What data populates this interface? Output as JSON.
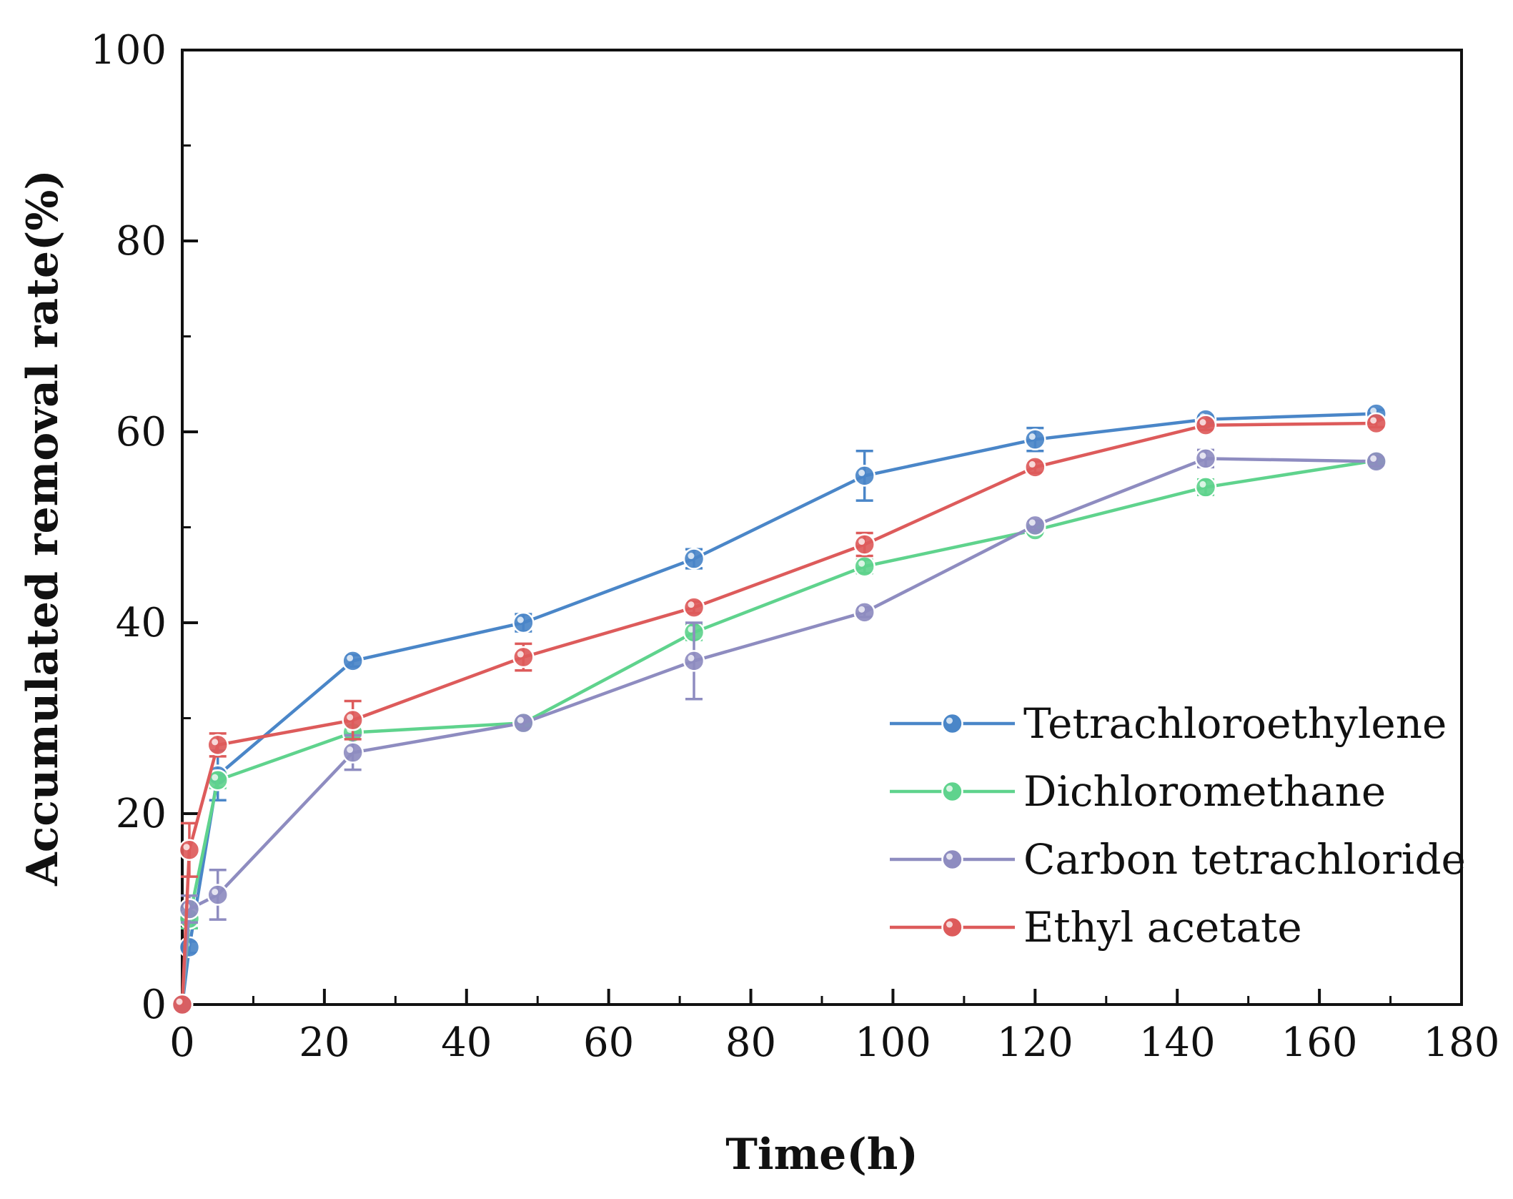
{
  "chart_data": {
    "type": "line",
    "title": "",
    "xlabel": "Time(h)",
    "ylabel": "Accumulated removal rate(%)",
    "xlim": [
      0,
      180
    ],
    "ylim": [
      0,
      100
    ],
    "xticks": [
      0,
      20,
      40,
      60,
      80,
      100,
      120,
      140,
      160,
      180
    ],
    "yticks": [
      0,
      20,
      40,
      60,
      80,
      100
    ],
    "x": [
      0,
      1,
      5,
      24,
      48,
      72,
      96,
      120,
      144,
      168
    ],
    "legend_position": "lower-right",
    "grid": false,
    "series": [
      {
        "name": "Tetrachloroethylene",
        "color": "#4a86c8",
        "values": [
          0,
          6,
          24,
          36,
          40,
          46.7,
          55.4,
          59.2,
          61.3,
          61.9
        ],
        "errors": [
          0,
          0.6,
          2.6,
          0.6,
          0.9,
          1.0,
          2.6,
          1.2,
          0.4,
          0.4
        ]
      },
      {
        "name": "Dichloromethane",
        "color": "#5fd38d",
        "values": [
          0,
          9,
          23.5,
          28.5,
          29.5,
          39,
          45.9,
          49.7,
          54.2,
          57.0
        ],
        "errors": [
          0,
          1.0,
          0.8,
          0.6,
          0.5,
          0.8,
          0.7,
          0.5,
          0.8,
          0.4
        ]
      },
      {
        "name": "Carbon tetrachloride",
        "color": "#8e8cc0",
        "values": [
          0,
          10,
          11.5,
          26.4,
          29.5,
          36,
          41.1,
          50.2,
          57.2,
          56.9
        ],
        "errors": [
          0,
          1.4,
          2.6,
          1.8,
          0.6,
          4.0,
          0.5,
          0.5,
          0.9,
          0.5
        ]
      },
      {
        "name": "Ethyl acetate",
        "color": "#dd5b5b",
        "values": [
          0,
          16.2,
          27.2,
          29.8,
          36.4,
          41.6,
          48.2,
          56.3,
          60.7,
          60.9
        ],
        "errors": [
          0,
          2.8,
          1.2,
          2.0,
          1.4,
          0.6,
          1.2,
          0.6,
          0.5,
          0.4
        ]
      }
    ]
  }
}
